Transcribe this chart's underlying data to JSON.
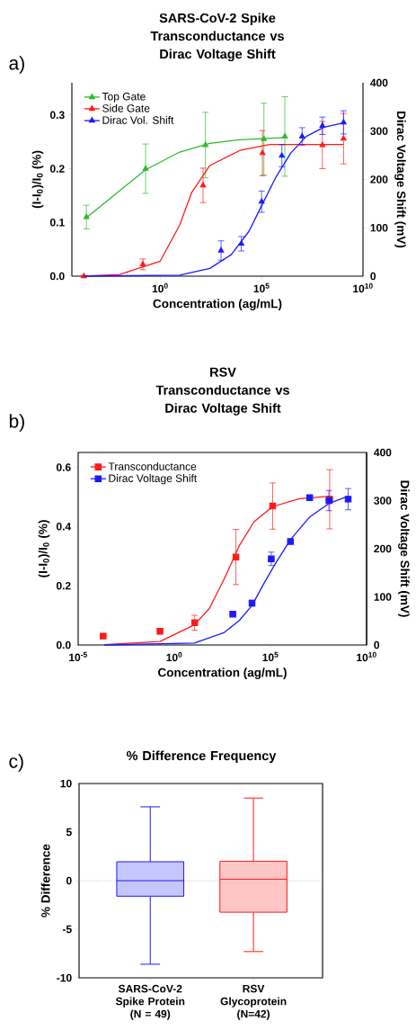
{
  "chart_data": [
    {
      "type": "scatter",
      "title": "SARS-CoV-2 Spike Transconductance vs Dirac Voltage Shift",
      "annotations": [
        "a)"
      ],
      "xlabel": "Concentration (ag/mL)",
      "ylabel": "(I-I$_{0}$)/I$_{0}$ (%)",
      "y2label": "Dirac Voltage Shift (mV)",
      "log": "x",
      "marker": "triangle",
      "legend": "top left",
      "xlim": [
        4.4e-05,
        10000000000.0
      ],
      "xticks": [
        {
          "value": 1,
          "label": "10$^{0}$"
        },
        {
          "value": 100000,
          "label": "10$^{5}$"
        },
        {
          "value": 10000000000,
          "label": "10$^{10}$"
        }
      ],
      "ylim": [
        0,
        0.36
      ],
      "yticks": [
        {
          "value": 0,
          "label": "0.0"
        },
        0.1,
        0.2,
        0.3
      ],
      "y2lim": [
        0,
        400
      ],
      "y2ticks": [
        0,
        100,
        200,
        300,
        400
      ],
      "series": [
        {
          "name": "Top Gate",
          "color": "#2eb82e",
          "x": [
            0.00023,
            0.19,
            170,
            130000.0,
            1400000.0
          ],
          "values": [
            0.11,
            0.2,
            0.244,
            0.255,
            0.26
          ],
          "errors": [
            0.022,
            0.046,
            0.061,
            0.067,
            0.074
          ]
        },
        {
          "name": "Side Gate",
          "color": "#ff1a1a",
          "x": [
            0.00017,
            0.14,
            130,
            110000.0,
            100000000.0,
            1100000000.0
          ],
          "values": [
            0.0,
            0.022,
            0.169,
            0.229,
            0.244,
            0.256
          ],
          "errors": [
            null,
            0.01,
            0.032,
            0.042,
            0.044,
            0.047
          ]
        },
        {
          "name": "Dirac Vol. Shift",
          "color": "#1a1aff",
          "axis": "y2",
          "x": [
            1000,
            10000,
            100000,
            1000000,
            10000000,
            100000000,
            1100000000.0
          ],
          "values": [
            53,
            67,
            154,
            249,
            289,
            311,
            318
          ],
          "errors": [
            20,
            15,
            22,
            23,
            18,
            18,
            24
          ]
        },
        {
          "type": "line",
          "marker": "none",
          "color": "#2eb82e",
          "x": [
            0.00023,
            0.01,
            0.19,
            9.1,
            280,
            8500,
            1400000.0
          ],
          "values": [
            0.109,
            0.159,
            0.198,
            0.231,
            0.247,
            0.254,
            0.258
          ]
        },
        {
          "type": "line",
          "marker": "none",
          "color": "#ff1a1a",
          "x": [
            0.00017,
            0.01,
            1,
            9.1,
            36,
            280,
            8500,
            250000.0,
            1100000000.0
          ],
          "values": [
            0.0,
            0.003,
            0.028,
            0.095,
            0.156,
            0.206,
            0.234,
            0.245,
            0.245
          ]
        },
        {
          "type": "line",
          "marker": "none",
          "color": "#1a1aff",
          "axis": "y2",
          "x": [
            0.00017,
            9.1,
            280,
            3100,
            24000,
            93000,
            510000.0,
            2800000.0,
            16000000.0,
            120000000.0,
            1100000000.0
          ],
          "values": [
            0,
            2,
            16,
            44,
            93,
            143,
            205,
            255,
            289,
            308,
            317
          ]
        }
      ]
    },
    {
      "type": "scatter",
      "title": "RSV Transconductance vs Dirac Voltage Shift",
      "annotations": [
        "b)"
      ],
      "xlabel": "Concentration (ag/mL)",
      "ylabel": "(I-I$_{0}$)/I$_{0}$ (%)",
      "y2label": "Dirac Voltage Shift (mV)",
      "log": "x",
      "marker": "square",
      "legend": "top left",
      "xlim": [
        1e-05,
        10000000000.0
      ],
      "xticks": [
        {
          "value": 1e-05,
          "label": "10$^{-5}$"
        },
        {
          "value": 1,
          "label": "10$^{0}$"
        },
        {
          "value": 100000,
          "label": "10$^{5}$"
        },
        {
          "value": 10000000000,
          "label": "10$^{10}$"
        }
      ],
      "ylim": [
        0,
        0.65
      ],
      "yticks": [
        {
          "value": 0,
          "label": "0.0"
        },
        0.2,
        0.4,
        0.6
      ],
      "y2lim": [
        0,
        400
      ],
      "y2ticks": [
        0,
        100,
        200,
        300,
        400
      ],
      "series": [
        {
          "name": "Transconductance",
          "color": "#ff1a1a",
          "x": [
            0.0002,
            0.18,
            11.5,
            1600,
            130000.0,
            120000000.0
          ],
          "values": [
            0.03,
            0.046,
            0.075,
            0.297,
            0.469,
            0.492
          ],
          "errors": [
            null,
            null,
            0.025,
            0.093,
            0.078,
            0.1
          ]
        },
        {
          "name": "Dirac Voltage Shift",
          "color": "#1a1aff",
          "axis": "y2",
          "x": [
            1100,
            11000,
            110000.0,
            1100000.0,
            11000000.0,
            110000000.0,
            1100000000.0
          ],
          "values": [
            64,
            87,
            179,
            215,
            306,
            300,
            303
          ],
          "errors": [
            null,
            6,
            14,
            null,
            null,
            21,
            22
          ]
        },
        {
          "type": "line",
          "marker": "none",
          "color": "#ff1a1a",
          "x": [
            0.00023,
            0.18,
            11,
            66,
            400,
            2400,
            14000,
            130000.0,
            3200000.0,
            120000000.0
          ],
          "values": [
            0.001,
            0.012,
            0.068,
            0.123,
            0.224,
            0.335,
            0.416,
            0.467,
            0.494,
            0.502
          ]
        },
        {
          "type": "line",
          "marker": "none",
          "color": "#1a1aff",
          "axis": "y2",
          "x": [
            0.00023,
            11,
            400,
            2400,
            11000,
            43000,
            180000.0,
            1100000.0,
            11000000.0,
            110000000.0,
            1100000000.0
          ],
          "values": [
            0,
            4,
            26,
            51,
            82,
            126,
            169,
            219,
            266,
            294,
            309
          ]
        }
      ]
    },
    {
      "type": "box",
      "title": "% Difference Frequency",
      "annotations": [
        "c)"
      ],
      "ylabel": "% Difference",
      "categories": [
        "SARS-CoV-2 Spike Protein (N = 49)",
        "RSV Glycoprotein (N=42)"
      ],
      "colors": [
        "#1a1aff",
        "#ff1a1a"
      ],
      "ylim": [
        -10,
        10
      ],
      "yticks": [
        -10,
        -5,
        0,
        5,
        10
      ],
      "ref_lines": [
        {
          "axis": "y",
          "value": 0,
          "color": "#999999",
          "line_style": "dotted"
        }
      ],
      "boxes": [
        {
          "low": -8.6,
          "q1": -1.6,
          "median": 0,
          "q3": 1.95,
          "high": 7.6
        },
        {
          "low": -7.3,
          "q1": -3.25,
          "median": 0.15,
          "q3": 2.0,
          "high": 8.5
        }
      ]
    }
  ]
}
